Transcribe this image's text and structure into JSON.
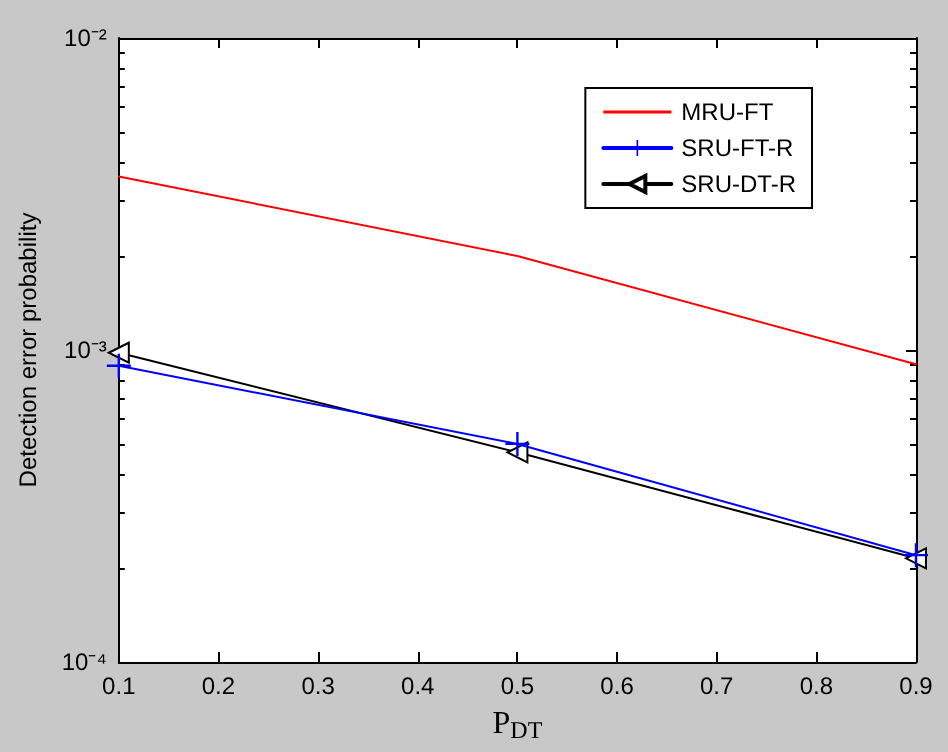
{
  "chart_data": {
    "type": "line",
    "xlabel": "P$_{DT}$",
    "ylabel": "Detection error probability",
    "x": [
      0.1,
      0.5,
      0.9
    ],
    "series": [
      {
        "name": "MRU-FT",
        "color": "#ff0000",
        "marker": "none",
        "values": [
          0.0036,
          0.002,
          0.0009
        ]
      },
      {
        "name": "SRU-FT-R",
        "color": "#0000ff",
        "marker": "cross",
        "values": [
          0.00089,
          0.0005,
          0.00022
        ]
      },
      {
        "name": "SRU-DT-R",
        "color": "#000000",
        "marker": "triangle",
        "values": [
          0.00098,
          0.00047,
          0.000215
        ]
      }
    ],
    "log": "y",
    "xlim": [
      0.1,
      0.9
    ],
    "ylim": [
      0.0001,
      0.01
    ],
    "xticks": [
      0.1,
      0.2,
      0.3,
      0.4,
      0.5,
      0.6,
      0.7,
      0.8,
      0.9
    ],
    "yticks": [
      {
        "value": 0.0001,
        "label": "10⁻⁴"
      },
      {
        "value": 0.001,
        "label": "10⁻³"
      },
      {
        "value": 0.01,
        "label": "10⁻²"
      }
    ],
    "grid": false,
    "legend": "top right"
  }
}
